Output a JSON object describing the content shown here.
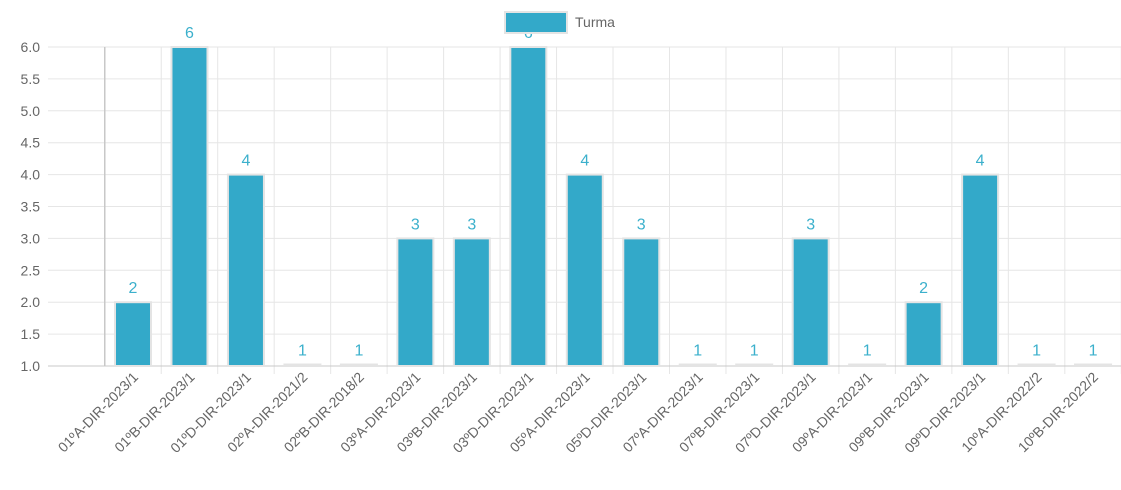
{
  "chart_data": {
    "type": "bar",
    "categories": [
      "01ºA-DIR-2023/1",
      "01ºB-DIR-2023/1",
      "01ºD-DIR-2023/1",
      "02ºA-DIR-2021/2",
      "02ºB-DIR-2018/2",
      "03ºA-DIR-2023/1",
      "03ºB-DIR-2023/1",
      "03ºD-DIR-2023/1",
      "05ºA-DIR-2023/1",
      "05ºD-DIR-2023/1",
      "07ºA-DIR-2023/1",
      "07ºB-DIR-2023/1",
      "07ºD-DIR-2023/1",
      "09ºA-DIR-2023/1",
      "09ºB-DIR-2023/1",
      "09ºD-DIR-2023/1",
      "10ºA-DIR-2022/2",
      "10ºB-DIR-2022/2"
    ],
    "series": [
      {
        "name": "Turma",
        "values": [
          2,
          6,
          4,
          1,
          1,
          3,
          3,
          6,
          4,
          3,
          1,
          1,
          3,
          1,
          2,
          4,
          1,
          1
        ]
      }
    ],
    "data_labels": [
      "2",
      "6",
      "4",
      "1",
      "1",
      "3",
      "3",
      "6",
      "4",
      "3",
      "1",
      "1",
      "3",
      "1",
      "2",
      "4",
      "1",
      "1"
    ],
    "y_ticks": [
      "6.0",
      "5.5",
      "5.0",
      "4.5",
      "4.0",
      "3.5",
      "3.0",
      "2.5",
      "2.0",
      "1.5",
      "1.0"
    ],
    "ylim": [
      1,
      6
    ],
    "grid": true,
    "legend_position": "top",
    "colors": {
      "bar_fill": "#33a9c9",
      "bar_border": "#e4e4e4",
      "data_label": "#3bb0cc",
      "grid": "#e6e6e6",
      "axis_text": "#666666"
    }
  }
}
